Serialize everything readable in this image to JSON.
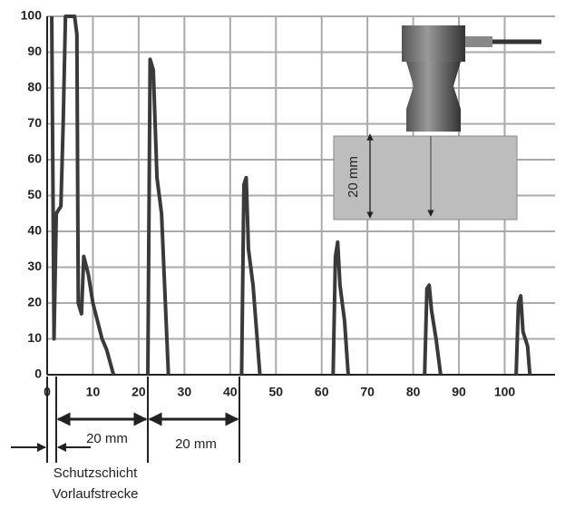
{
  "chart_data": {
    "type": "line",
    "x": [
      1,
      1.5,
      2,
      3,
      3.5,
      4,
      6,
      6.5,
      6.8,
      7.5,
      8,
      9,
      10,
      12,
      13,
      14.5,
      null,
      22,
      22.5,
      23.2,
      24,
      25,
      26.5,
      null,
      42.5,
      43,
      43.5,
      44,
      45,
      46.5,
      null,
      62.5,
      63,
      63.5,
      64,
      65,
      65.8,
      null,
      82.5,
      83,
      83.5,
      84,
      85,
      86,
      null,
      102.5,
      103,
      103.5,
      104,
      105,
      105.5
    ],
    "series": [
      {
        "color": "#3a3a3a",
        "values": [
          100,
          10,
          45,
          47,
          70,
          100,
          100,
          95,
          20,
          17,
          33,
          28,
          20,
          10,
          7,
          0,
          null,
          0,
          88,
          85,
          55,
          45,
          0,
          null,
          0,
          53,
          55,
          35,
          25,
          0,
          null,
          0,
          33,
          37,
          25,
          15,
          0,
          null,
          0,
          24,
          25,
          18,
          10,
          0,
          null,
          0,
          20,
          22,
          12,
          8,
          0
        ]
      }
    ],
    "xlim": [
      0,
      111
    ],
    "ylim": [
      0,
      100
    ],
    "xticks": [
      0,
      10,
      20,
      30,
      40,
      50,
      60,
      70,
      80,
      90,
      100
    ],
    "yticks": [
      0,
      10,
      20,
      30,
      40,
      50,
      60,
      70,
      80,
      90,
      100
    ],
    "grid": true,
    "annotations": [
      "20 mm",
      "20 mm",
      "Schutzschicht",
      "Vorlaufstrecke",
      "20 mm"
    ]
  }
}
